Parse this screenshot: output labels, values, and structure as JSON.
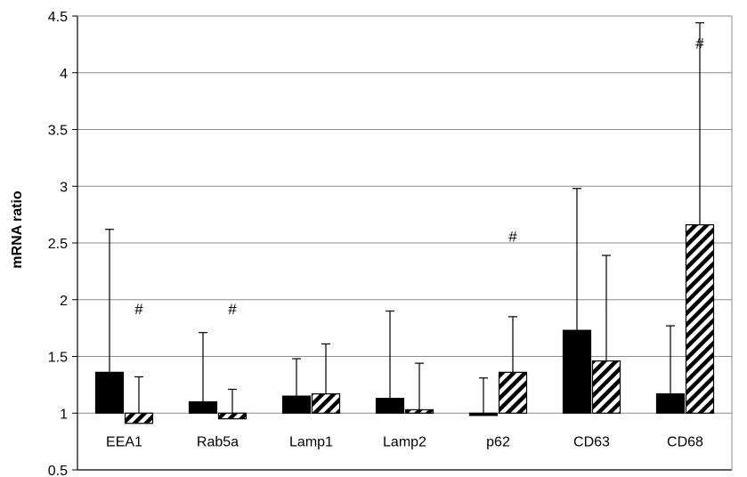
{
  "chart_data": {
    "type": "bar",
    "title": "",
    "xlabel": "",
    "ylabel": "mRNA ratio",
    "ylim": [
      0.5,
      4.5
    ],
    "yticks": [
      "0.5",
      "1",
      "1.5",
      "2",
      "2.5",
      "3",
      "3.5",
      "4",
      "4.5"
    ],
    "baseline": 1,
    "grid": true,
    "legend": "none",
    "categories": [
      "EEA1",
      "Rab5a",
      "Lamp1",
      "Lamp2",
      "p62",
      "CD63",
      "CD68"
    ],
    "series": [
      {
        "fill": "solid",
        "color": "#000000",
        "values": [
          1.36,
          1.1,
          1.15,
          1.13,
          0.98,
          1.73,
          1.17
        ],
        "error_upper": [
          2.62,
          1.71,
          1.48,
          1.9,
          1.31,
          2.98,
          1.77
        ]
      },
      {
        "fill": "hatched",
        "color": "#000000",
        "values": [
          0.91,
          0.95,
          1.17,
          1.03,
          1.36,
          1.46,
          2.66
        ],
        "error_upper": [
          1.32,
          1.21,
          1.61,
          1.44,
          1.85,
          2.39,
          4.44
        ]
      }
    ],
    "annotations": [
      {
        "category": "EEA1",
        "text": "#",
        "y": 1.92
      },
      {
        "category": "Rab5a",
        "text": "#",
        "y": 1.92
      },
      {
        "category": "p62",
        "text": "#",
        "y": 2.56
      },
      {
        "category": "CD68",
        "text": "#",
        "y": 4.26
      }
    ]
  }
}
